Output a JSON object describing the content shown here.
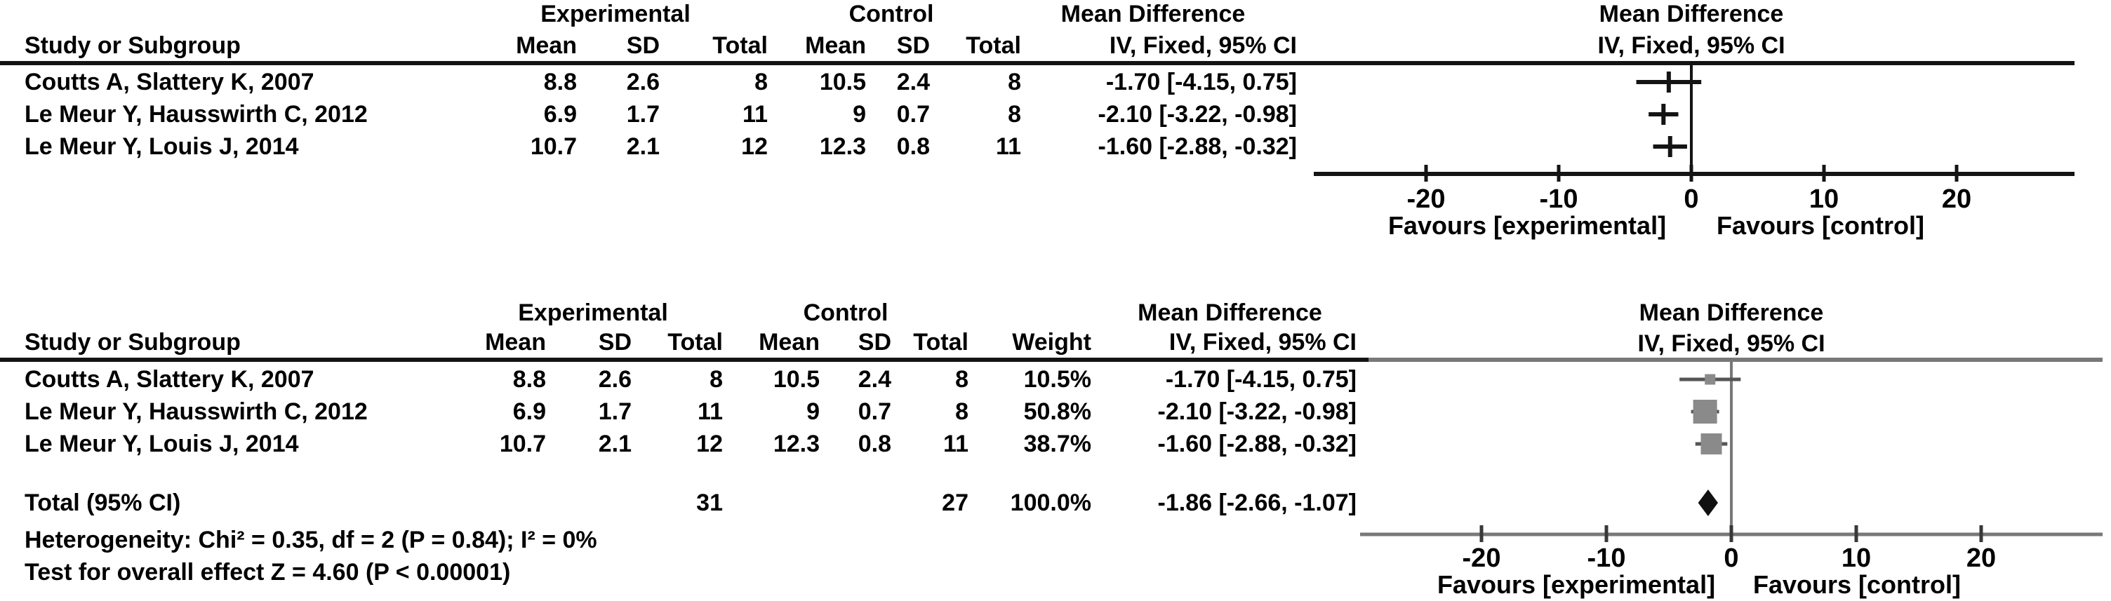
{
  "colors": {
    "black_line": "#141414",
    "gray_line": "#787878",
    "whisker_dark": "#555555",
    "square_fill": "#8a8a8a",
    "diamond_fill": "#111111",
    "text": "#000000",
    "background": "#ffffff"
  },
  "chart_data": [
    {
      "type": "forest",
      "panel": "top",
      "group_headers": [
        "Experimental",
        "Control",
        "Mean Difference"
      ],
      "effect_title": "Mean Difference",
      "method_label": "IV, Fixed, 95% CI",
      "columns": [
        "Study or Subgroup",
        "Mean",
        "SD",
        "Total",
        "Mean",
        "SD",
        "Total",
        "IV, Fixed, 95% CI"
      ],
      "studies": [
        {
          "label": "Coutts A, Slattery K, 2007",
          "exp_mean": "8.8",
          "exp_sd": "2.6",
          "exp_total": "8",
          "ctrl_mean": "10.5",
          "ctrl_sd": "2.4",
          "ctrl_total": "8",
          "ci_text": "-1.70 [-4.15, 0.75]",
          "md": -1.7,
          "ci_lo": -4.15,
          "ci_hi": 0.75
        },
        {
          "label": "Le Meur Y, Hausswirth C, 2012",
          "exp_mean": "6.9",
          "exp_sd": "1.7",
          "exp_total": "11",
          "ctrl_mean": "9",
          "ctrl_sd": "0.7",
          "ctrl_total": "8",
          "ci_text": "-2.10 [-3.22, -0.98]",
          "md": -2.1,
          "ci_lo": -3.22,
          "ci_hi": -0.98
        },
        {
          "label": "Le Meur Y, Louis J, 2014",
          "exp_mean": "10.7",
          "exp_sd": "2.1",
          "exp_total": "12",
          "ctrl_mean": "12.3",
          "ctrl_sd": "0.8",
          "ctrl_total": "11",
          "ci_text": "-1.60 [-2.88, -0.32]",
          "md": -1.6,
          "ci_lo": -2.88,
          "ci_hi": -0.32
        }
      ],
      "axis": {
        "ticks": [
          -20,
          -10,
          0,
          10,
          20
        ],
        "xmin": -28.5,
        "xmax": 28.9,
        "favours_left": "Favours [experimental]",
        "favours_right": "Favours [control]"
      }
    },
    {
      "type": "forest",
      "panel": "bottom",
      "group_headers": [
        "Experimental",
        "Control",
        "Mean Difference"
      ],
      "effect_title": "Mean Difference",
      "method_label": "IV, Fixed, 95% CI",
      "columns": [
        "Study or Subgroup",
        "Mean",
        "SD",
        "Total",
        "Mean",
        "SD",
        "Total",
        "Weight",
        "IV, Fixed, 95% CI"
      ],
      "studies": [
        {
          "label": "Coutts A, Slattery K, 2007",
          "exp_mean": "8.8",
          "exp_sd": "2.6",
          "exp_total": "8",
          "ctrl_mean": "10.5",
          "ctrl_sd": "2.4",
          "ctrl_total": "8",
          "weight": "10.5%",
          "weight_value": 10.5,
          "ci_text": "-1.70 [-4.15, 0.75]",
          "md": -1.7,
          "ci_lo": -4.15,
          "ci_hi": 0.75
        },
        {
          "label": "Le Meur Y, Hausswirth C, 2012",
          "exp_mean": "6.9",
          "exp_sd": "1.7",
          "exp_total": "11",
          "ctrl_mean": "9",
          "ctrl_sd": "0.7",
          "ctrl_total": "8",
          "weight": "50.8%",
          "weight_value": 50.8,
          "ci_text": "-2.10 [-3.22, -0.98]",
          "md": -2.1,
          "ci_lo": -3.22,
          "ci_hi": -0.98
        },
        {
          "label": "Le Meur Y, Louis J, 2014",
          "exp_mean": "10.7",
          "exp_sd": "2.1",
          "exp_total": "12",
          "ctrl_mean": "12.3",
          "ctrl_sd": "0.8",
          "ctrl_total": "11",
          "weight": "38.7%",
          "weight_value": 38.7,
          "ci_text": "-1.60 [-2.88, -0.32]",
          "md": -1.6,
          "ci_lo": -2.88,
          "ci_hi": -0.32
        }
      ],
      "total_row": {
        "label": "Total (95% CI)",
        "exp_total": "31",
        "ctrl_total": "27",
        "weight": "100.0%",
        "ci_text": "-1.86 [-2.66, -1.07]",
        "md": -1.86,
        "ci_lo": -2.66,
        "ci_hi": -1.07
      },
      "heterogeneity": "Heterogeneity: Chi² = 0.35, df = 2 (P = 0.84); I² = 0%",
      "overall_effect": "Test for overall effect Z = 4.60 (P < 0.00001)",
      "axis": {
        "ticks": [
          -20,
          -10,
          0,
          10,
          20
        ],
        "xmin": -29.7,
        "xmax": 29.7,
        "favours_left": "Favours [experimental]",
        "favours_right": "Favours [control]"
      }
    }
  ]
}
